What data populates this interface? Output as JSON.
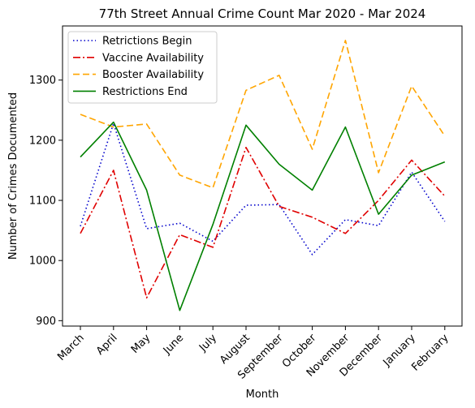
{
  "chart_data": {
    "type": "line",
    "title": "77th Street Annual Crime Count Mar 2020 - Mar 2024",
    "xlabel": "Month",
    "ylabel": "Number of Crimes Documented",
    "categories": [
      "March",
      "April",
      "May",
      "June",
      "July",
      "August",
      "September",
      "October",
      "November",
      "December",
      "January",
      "February"
    ],
    "y_ticks": [
      900,
      1000,
      1100,
      1200,
      1300
    ],
    "ylim": [
      891,
      1390
    ],
    "grid": false,
    "legend_position": "top-left",
    "series": [
      {
        "name": "Retrictions Begin",
        "color": "#0000cc",
        "dash": "dotted",
        "values": [
          1057,
          1228,
          1053,
          1062,
          1032,
          1092,
          1093,
          1010,
          1068,
          1058,
          1147,
          1065
        ]
      },
      {
        "name": "Vaccine Availability",
        "color": "#e00000",
        "dash": "dashdot",
        "values": [
          1045,
          1150,
          938,
          1043,
          1022,
          1188,
          1090,
          1072,
          1045,
          1100,
          1167,
          1107
        ]
      },
      {
        "name": "Booster Availability",
        "color": "#ffa500",
        "dash": "dashed",
        "values": [
          1243,
          1222,
          1227,
          1142,
          1121,
          1283,
          1308,
          1185,
          1366,
          1146,
          1290,
          1207
        ]
      },
      {
        "name": "Restrictions End",
        "color": "#008000",
        "dash": "solid",
        "values": [
          1172,
          1230,
          1117,
          917,
          1060,
          1225,
          1160,
          1117,
          1222,
          1077,
          1142,
          1164
        ]
      }
    ]
  }
}
